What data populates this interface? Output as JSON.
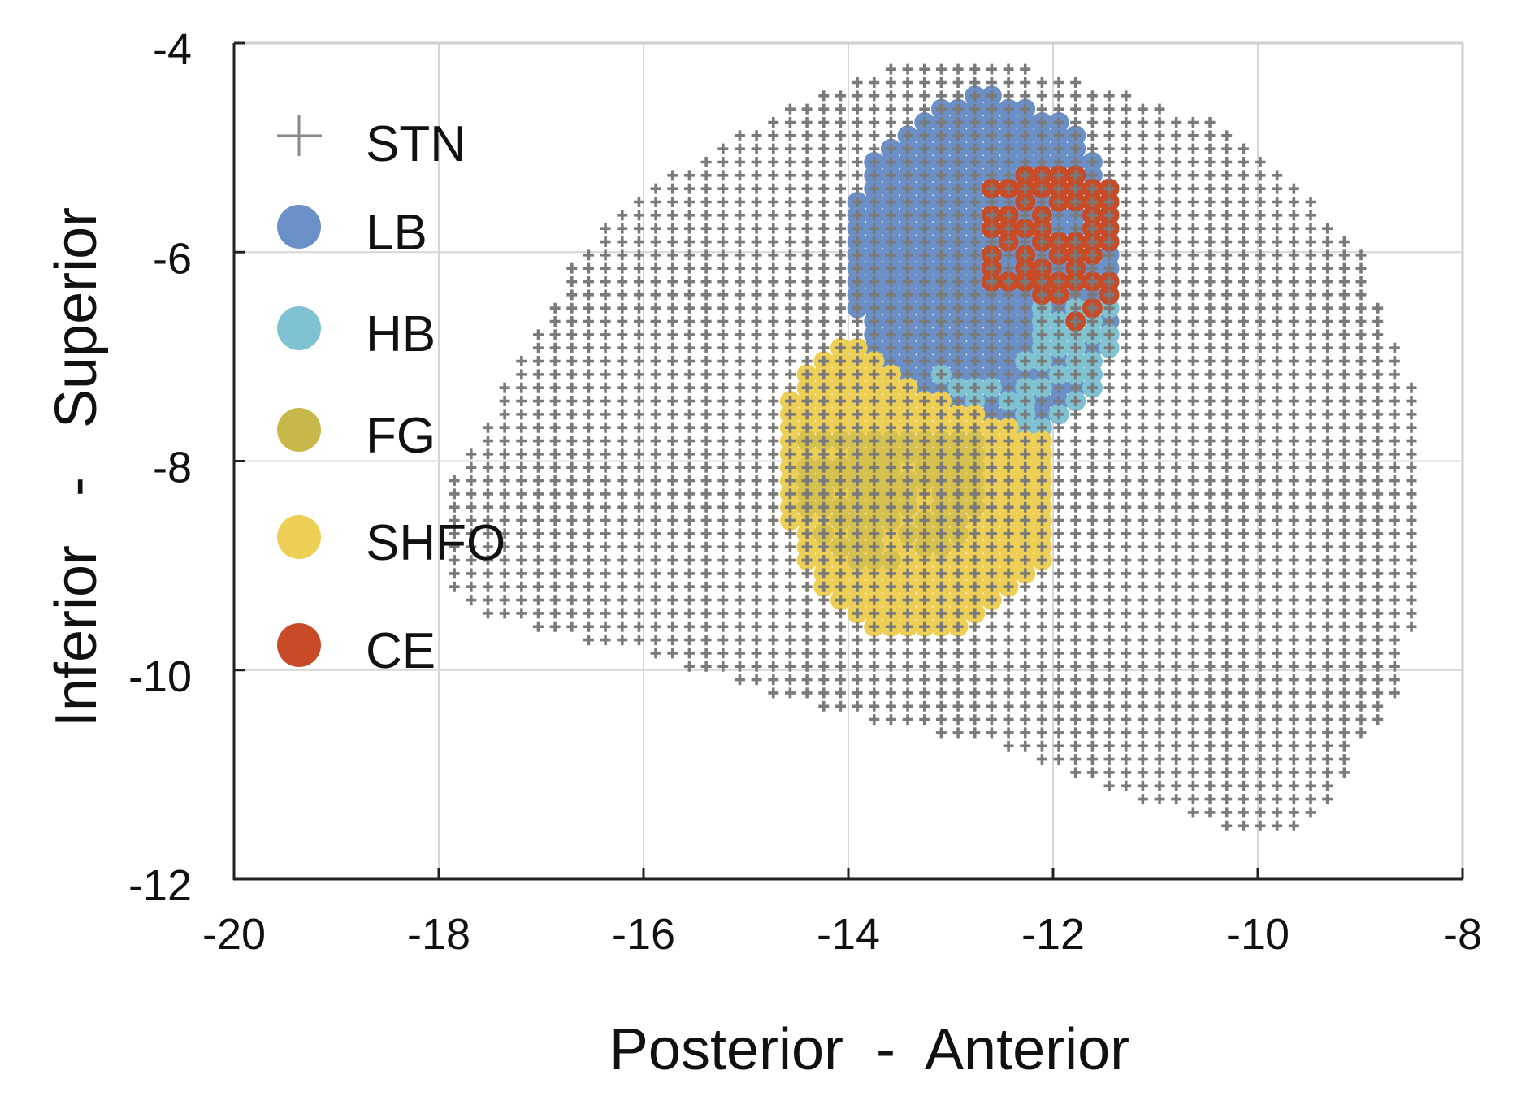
{
  "chart_data": {
    "type": "scatter",
    "xlabel": "Posterior  -  Anterior",
    "ylabel": "Inferior   -   Superior",
    "xlim": [
      -20,
      -8
    ],
    "ylim": [
      -12,
      -4
    ],
    "xticks": [
      "-20",
      "-18",
      "-16",
      "-14",
      "-12",
      "-10",
      "-8"
    ],
    "yticks": [
      "-4",
      "-6",
      "-8",
      "-10",
      "-12"
    ],
    "grid": true,
    "legend_position": "top-left",
    "grid_step": {
      "x": 0.164,
      "y": 0.127
    },
    "series": [
      {
        "name": "STN",
        "marker": "plus",
        "color": "#7a7a7a",
        "outline": [
          [
            -13.46,
            -4.2
          ],
          [
            -12.4,
            -4.2
          ],
          [
            -10.54,
            -4.7
          ],
          [
            -9.53,
            -5.45
          ],
          [
            -9.0,
            -6.0
          ],
          [
            -8.77,
            -6.6
          ],
          [
            -8.45,
            -7.35
          ],
          [
            -8.42,
            -8.3
          ],
          [
            -8.42,
            -9.2
          ],
          [
            -8.6,
            -10.1
          ],
          [
            -8.77,
            -10.45
          ],
          [
            -9.0,
            -10.7
          ],
          [
            -9.2,
            -11.1
          ],
          [
            -9.53,
            -11.5
          ],
          [
            -10.3,
            -11.5
          ],
          [
            -11.64,
            -11.1
          ],
          [
            -12.6,
            -10.72
          ],
          [
            -13.94,
            -10.45
          ],
          [
            -15.28,
            -10.07
          ],
          [
            -16.05,
            -9.83
          ],
          [
            -17.11,
            -9.6
          ],
          [
            -17.58,
            -9.46
          ],
          [
            -17.95,
            -9.22
          ],
          [
            -17.95,
            -8.3
          ],
          [
            -17.4,
            -7.35
          ],
          [
            -16.96,
            -6.6
          ],
          [
            -16.63,
            -6.03
          ],
          [
            -16.05,
            -5.45
          ],
          [
            -14.76,
            -4.7
          ]
        ]
      },
      {
        "name": "LB",
        "marker": "circle",
        "color": "#6b8fc7",
        "outline": [
          [
            -12.7,
            -4.41
          ],
          [
            -11.83,
            -4.81
          ],
          [
            -11.55,
            -5.18
          ],
          [
            -11.35,
            -5.46
          ],
          [
            -11.35,
            -6.69
          ],
          [
            -11.55,
            -7.34
          ],
          [
            -11.93,
            -7.62
          ],
          [
            -12.31,
            -7.77
          ],
          [
            -12.79,
            -7.58
          ],
          [
            -13.27,
            -7.3
          ],
          [
            -13.7,
            -7.06
          ],
          [
            -13.85,
            -6.69
          ],
          [
            -14.02,
            -6.31
          ],
          [
            -14.02,
            -5.84
          ],
          [
            -13.85,
            -5.18
          ],
          [
            -13.46,
            -4.81
          ]
        ]
      },
      {
        "name": "HB",
        "marker": "circle",
        "color": "#7fc3d2",
        "outline": [
          [
            -12.22,
            -6.31
          ],
          [
            -11.35,
            -6.31
          ],
          [
            -11.35,
            -6.87
          ],
          [
            -11.55,
            -7.34
          ],
          [
            -11.93,
            -7.62
          ],
          [
            -12.31,
            -7.77
          ],
          [
            -12.79,
            -7.58
          ],
          [
            -13.27,
            -7.3
          ],
          [
            -13.08,
            -7.15
          ],
          [
            -12.41,
            -7.34
          ],
          [
            -12.22,
            -6.87
          ]
        ]
      },
      {
        "name": "FG",
        "marker": "circle",
        "color": "#c8b84a",
        "outline": [
          [
            -14.33,
            -7.72
          ],
          [
            -12.7,
            -7.72
          ],
          [
            -12.7,
            -8.47
          ],
          [
            -13.08,
            -8.85
          ],
          [
            -13.75,
            -9.03
          ],
          [
            -14.23,
            -8.85
          ],
          [
            -14.52,
            -8.47
          ],
          [
            -14.52,
            -7.91
          ]
        ]
      },
      {
        "name": "SHFO",
        "marker": "circle",
        "color": "#eecf55",
        "outline": [
          [
            -13.94,
            -6.83
          ],
          [
            -13.37,
            -7.25
          ],
          [
            -12.79,
            -7.53
          ],
          [
            -12.31,
            -7.72
          ],
          [
            -12.01,
            -7.72
          ],
          [
            -11.98,
            -8.85
          ],
          [
            -12.31,
            -9.22
          ],
          [
            -12.7,
            -9.5
          ],
          [
            -13.08,
            -9.67
          ],
          [
            -13.56,
            -9.67
          ],
          [
            -14.04,
            -9.5
          ],
          [
            -14.23,
            -9.22
          ],
          [
            -14.47,
            -8.89
          ],
          [
            -14.66,
            -8.47
          ],
          [
            -14.66,
            -7.62
          ],
          [
            -14.47,
            -7.2
          ],
          [
            -14.23,
            -6.97
          ]
        ]
      },
      {
        "name": "CE",
        "marker": "circle",
        "color": "#c84b27",
        "outline": [
          [
            -12.22,
            -5.18
          ],
          [
            -11.64,
            -5.09
          ],
          [
            -11.35,
            -5.46
          ],
          [
            -11.31,
            -6.31
          ],
          [
            -11.83,
            -6.73
          ],
          [
            -12.12,
            -6.4
          ],
          [
            -12.6,
            -6.31
          ],
          [
            -12.7,
            -5.84
          ],
          [
            -12.6,
            -5.37
          ]
        ]
      }
    ]
  }
}
